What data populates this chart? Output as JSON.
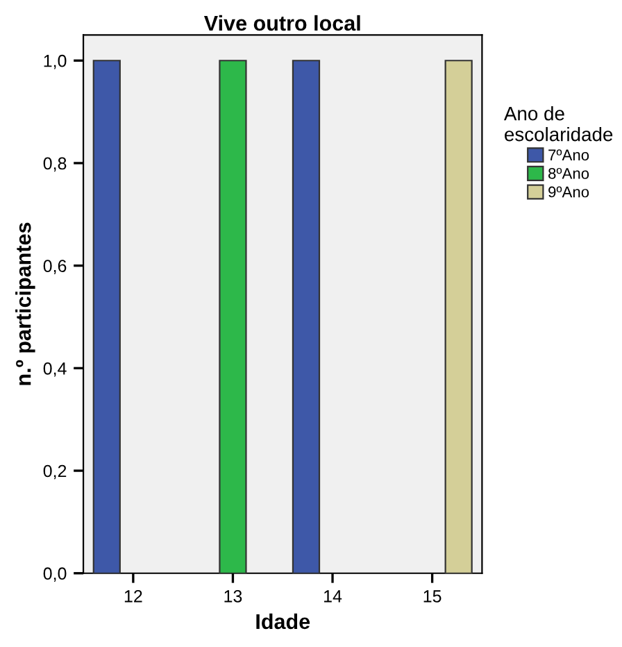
{
  "chart_data": {
    "type": "bar",
    "title": "Vive outro local",
    "xlabel": "Idade",
    "ylabel": "n.º participantes",
    "legend_title": "Ano de\nescolaridade",
    "categories": [
      "12",
      "13",
      "14",
      "15"
    ],
    "series": [
      {
        "name": "7ºAno",
        "color": "#3e58a8",
        "values": [
          1.0,
          null,
          1.0,
          null
        ]
      },
      {
        "name": "8ºAno",
        "color": "#2db84a",
        "values": [
          null,
          1.0,
          null,
          null
        ]
      },
      {
        "name": "9ºAno",
        "color": "#d4cf98",
        "values": [
          null,
          null,
          null,
          1.0
        ]
      }
    ],
    "ylim": [
      0,
      1.05
    ],
    "yticks": [
      {
        "value": 0,
        "label": "0,0"
      },
      {
        "value": 0.2,
        "label": "0,2"
      },
      {
        "value": 0.4,
        "label": "0,4"
      },
      {
        "value": 0.6,
        "label": "0,6"
      },
      {
        "value": 0.8,
        "label": "0,8"
      },
      {
        "value": 1.0,
        "label": "1,0"
      }
    ],
    "grid": false,
    "legend": "right"
  }
}
